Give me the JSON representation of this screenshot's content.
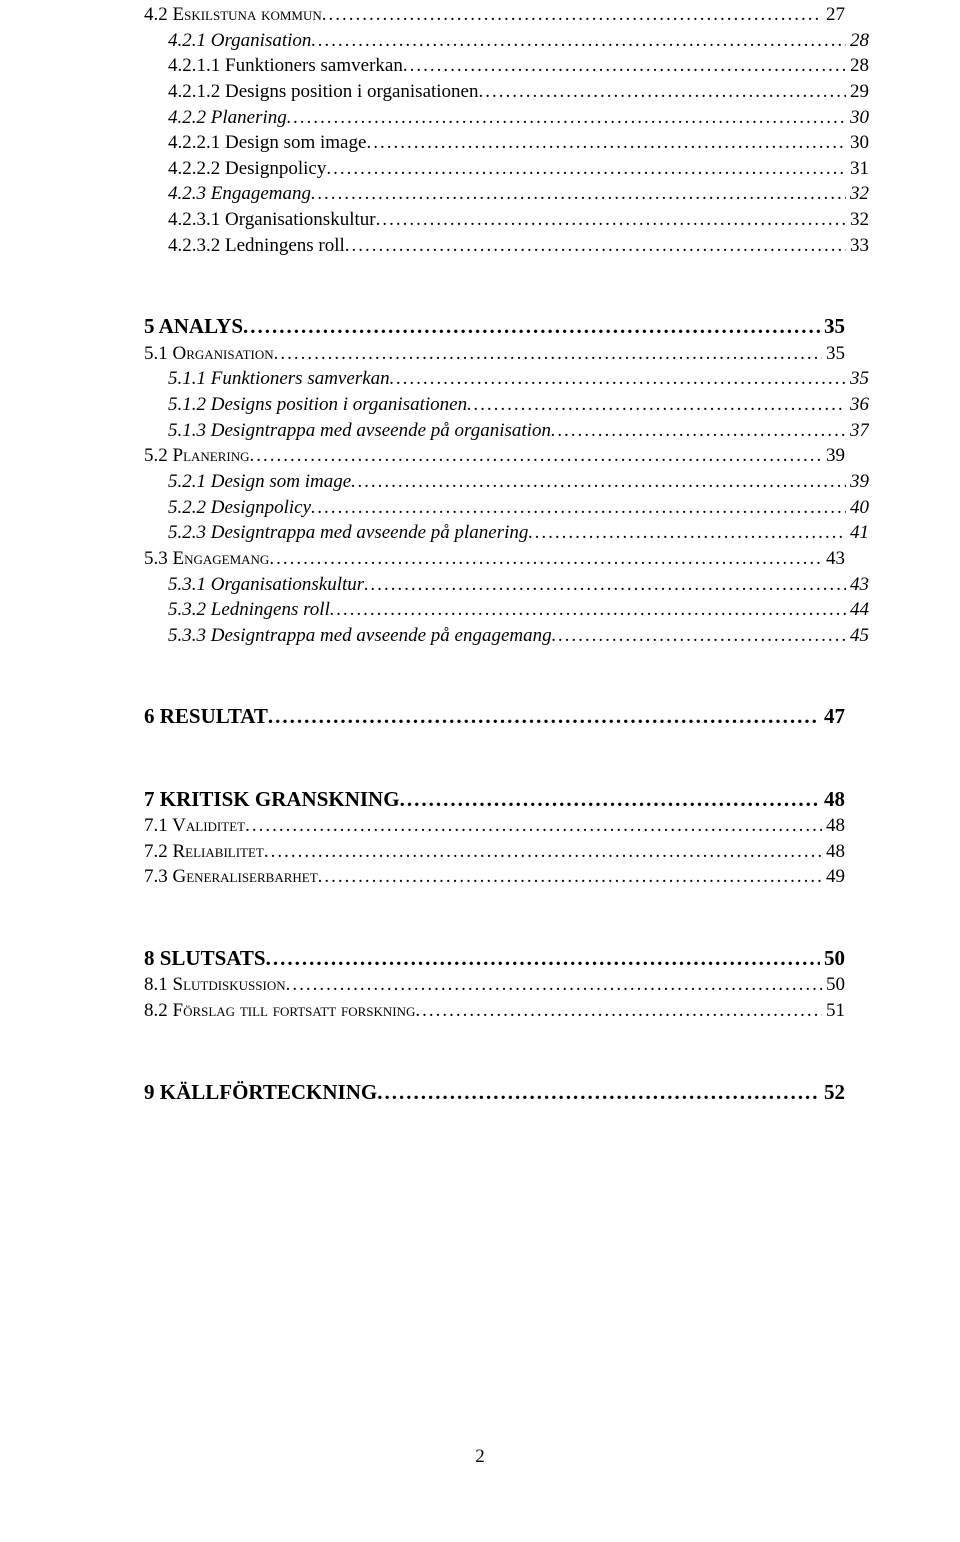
{
  "colors": {
    "text": "#000000",
    "background": "#ffffff"
  },
  "typography": {
    "font_family": "Times New Roman",
    "base_size_pt": 12
  },
  "page_number": "2",
  "toc": [
    {
      "level": 2,
      "label": "4.2 Eskilstuna kommun",
      "page": "27"
    },
    {
      "level": 3,
      "label": "4.2.1 Organisation",
      "page": "28"
    },
    {
      "level": 4,
      "label": "4.2.1.1 Funktioners samverkan",
      "page": "28"
    },
    {
      "level": 4,
      "label": "4.2.1.2 Designs position i organisationen",
      "page": "29"
    },
    {
      "level": 3,
      "label": "4.2.2 Planering",
      "page": "30"
    },
    {
      "level": 4,
      "label": "4.2.2.1 Design som image",
      "page": "30"
    },
    {
      "level": 4,
      "label": "4.2.2.2 Designpolicy",
      "page": "31"
    },
    {
      "level": 3,
      "label": "4.2.3 Engagemang",
      "page": "32"
    },
    {
      "level": 4,
      "label": "4.2.3.1 Organisationskultur",
      "page": "32"
    },
    {
      "level": 4,
      "label": "4.2.3.2 Ledningens roll",
      "page": "33"
    },
    {
      "level": 0,
      "gap": "section"
    },
    {
      "level": 1,
      "label": "5 ANALYS",
      "page": "35"
    },
    {
      "level": 2,
      "label": "5.1 Organisation",
      "page": "35"
    },
    {
      "level": 3,
      "label": "5.1.1 Funktioners samverkan",
      "page": "35"
    },
    {
      "level": 3,
      "label": "5.1.2 Designs position i organisationen",
      "page": "36"
    },
    {
      "level": 3,
      "label": "5.1.3 Designtrappa med avseende på organisation",
      "page": "37"
    },
    {
      "level": 2,
      "label": "5.2 Planering",
      "page": "39"
    },
    {
      "level": 3,
      "label": "5.2.1 Design som image",
      "page": "39"
    },
    {
      "level": 3,
      "label": "5.2.2 Designpolicy",
      "page": "40"
    },
    {
      "level": 3,
      "label": "5.2.3 Designtrappa med avseende på planering",
      "page": "41"
    },
    {
      "level": 2,
      "label": "5.3 Engagemang",
      "page": "43"
    },
    {
      "level": 3,
      "label": "5.3.1 Organisationskultur",
      "page": "43"
    },
    {
      "level": 3,
      "label": "5.3.2 Ledningens roll",
      "page": "44"
    },
    {
      "level": 3,
      "label": "5.3.3 Designtrappa med avseende på engagemang",
      "page": "45"
    },
    {
      "level": 0,
      "gap": "section"
    },
    {
      "level": 1,
      "label": "6 RESULTAT",
      "page": "47"
    },
    {
      "level": 0,
      "gap": "section"
    },
    {
      "level": 1,
      "label": "7 KRITISK GRANSKNING",
      "page": "48"
    },
    {
      "level": 2,
      "label": "7.1 Validitet",
      "page": "48"
    },
    {
      "level": 2,
      "label": "7.2 Reliabilitet",
      "page": "48"
    },
    {
      "level": 2,
      "label": "7.3 Generaliserbarhet",
      "page": "49"
    },
    {
      "level": 0,
      "gap": "section"
    },
    {
      "level": 1,
      "label": "8 SLUTSATS",
      "page": "50"
    },
    {
      "level": 2,
      "label": "8.1 Slutdiskussion",
      "page": "50"
    },
    {
      "level": 2,
      "label": "8.2 Förslag till fortsatt forskning",
      "page": "51"
    },
    {
      "level": 0,
      "gap": "section"
    },
    {
      "level": 1,
      "label": "9 KÄLLFÖRTECKNING",
      "page": "52"
    }
  ]
}
